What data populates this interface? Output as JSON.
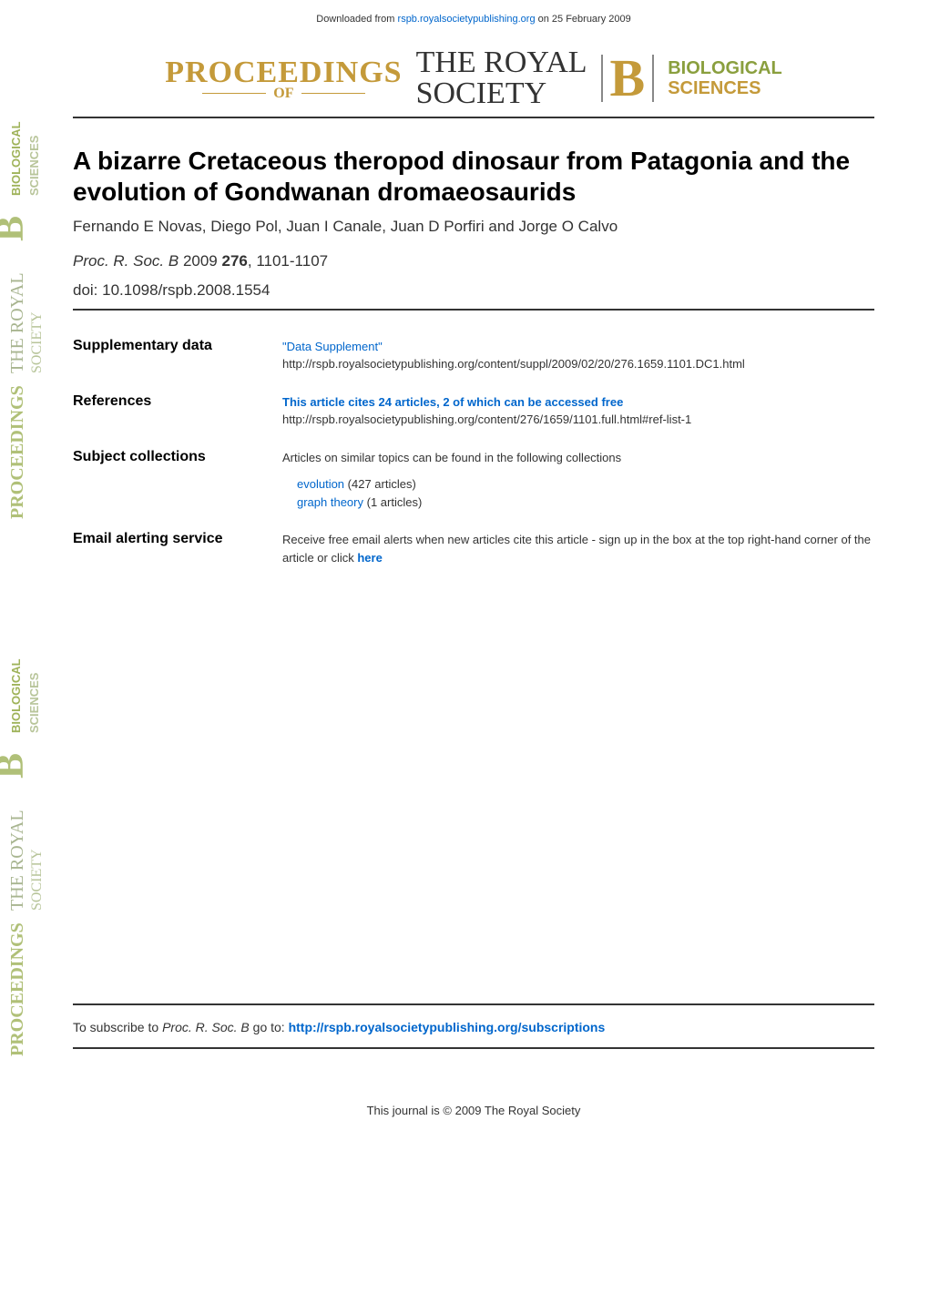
{
  "download_note": {
    "prefix": "Downloaded from ",
    "link_text": "rspb.royalsocietypublishing.org",
    "suffix": " on 25 February 2009"
  },
  "journal_header": {
    "proceedings": "PROCEEDINGS",
    "of": "OF",
    "royal_society_line1": "THE ROYAL",
    "royal_society_line2": "SOCIETY",
    "b_letter": "B",
    "biological": "BIOLOGICAL",
    "sciences": "SCIENCES"
  },
  "article": {
    "title": "A bizarre Cretaceous theropod dinosaur from Patagonia and the evolution of Gondwanan dromaeosaurids",
    "authors": "Fernando E Novas, Diego Pol, Juan I Canale, Juan D Porfiri and Jorge O Calvo",
    "journal": "Proc. R. Soc. B",
    "year": "2009",
    "volume": "276",
    "pages": "1101-1107",
    "doi": "doi: 10.1098/rspb.2008.1554"
  },
  "sections": {
    "supplementary": {
      "label": "Supplementary data",
      "link_text": "\"Data Supplement\"",
      "url": "http://rspb.royalsocietypublishing.org/content/suppl/2009/02/20/276.1659.1101.DC1.html"
    },
    "references": {
      "label": "References",
      "link_text": "This article cites 24 articles, 2 of which can be accessed free",
      "url": "http://rspb.royalsocietypublishing.org/content/276/1659/1101.full.html#ref-list-1"
    },
    "subjects": {
      "label": "Subject collections",
      "intro": "Articles on similar topics can be found in the following collections",
      "items": [
        {
          "name": "evolution",
          "count": "(427 articles)"
        },
        {
          "name": "graph theory",
          "count": "(1 articles)"
        }
      ]
    },
    "alerts": {
      "label": "Email alerting service",
      "text_prefix": "Receive free email alerts when new articles cite this article - sign up in the box at the top right-hand corner of the article or click ",
      "link_text": "here"
    }
  },
  "subscribe": {
    "prefix": "To subscribe to ",
    "journal": "Proc. R. Soc. B",
    "middle": " go to: ",
    "url": "http://rspb.royalsocietypublishing.org/subscriptions"
  },
  "copyright": "This journal is © 2009 The Royal Society",
  "colors": {
    "gold": "#c49a3a",
    "green": "#8a9f3e",
    "link": "#0066cc",
    "rule": "#333333"
  }
}
